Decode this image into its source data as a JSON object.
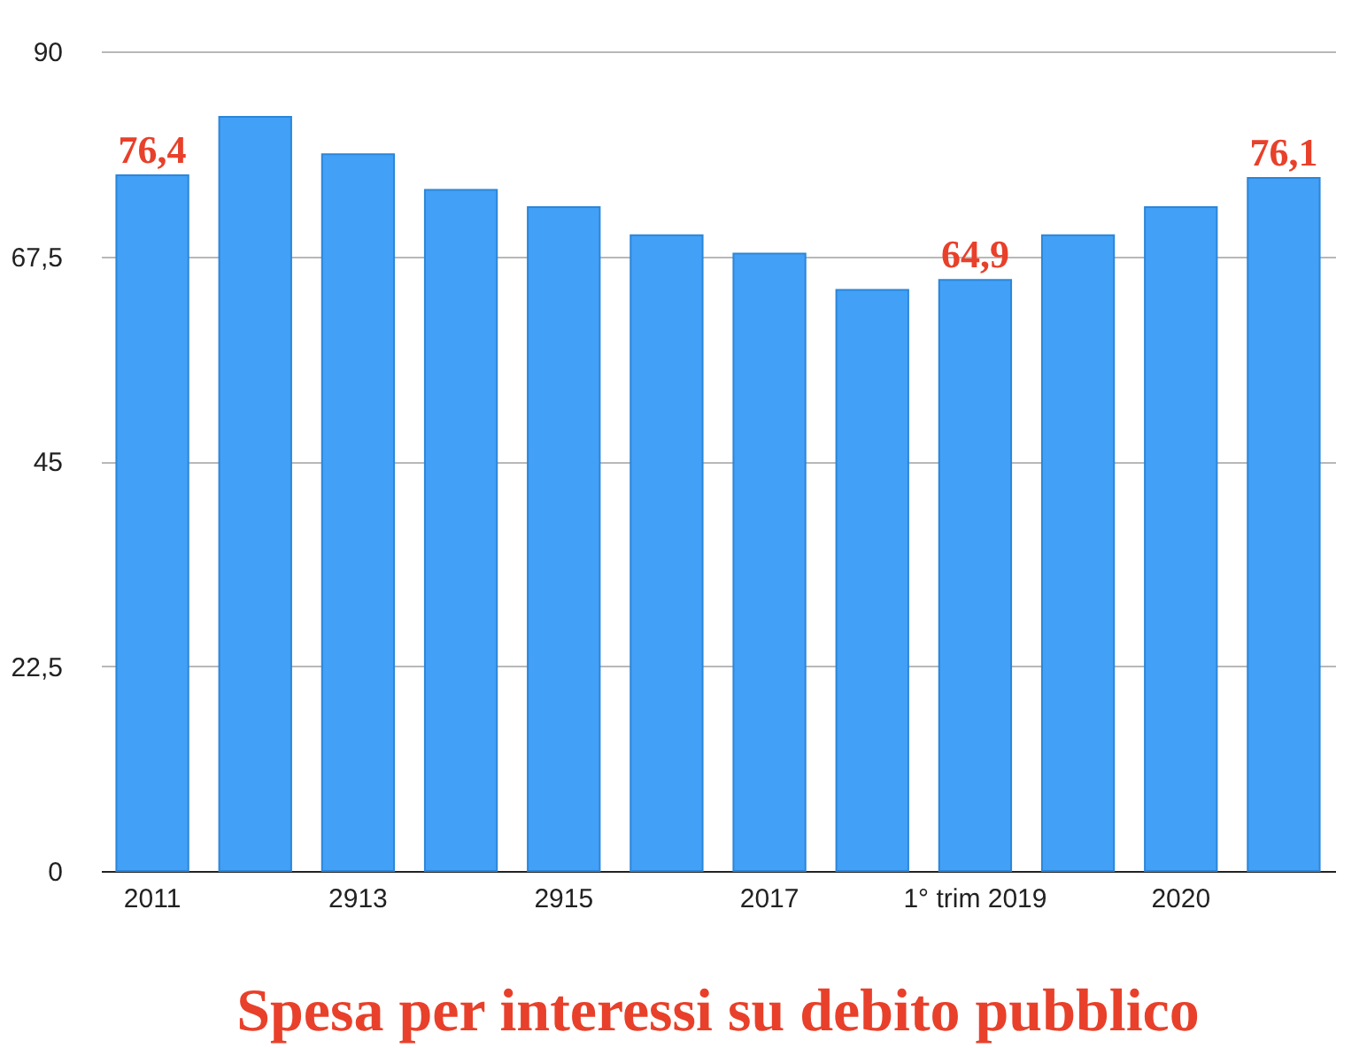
{
  "chart_data": {
    "type": "bar",
    "title": "Spesa per interessi su debito pubblico",
    "categories": [
      "2011",
      null,
      "2913",
      null,
      "2915",
      null,
      "2017",
      null,
      "1° trim 2019",
      null,
      "2020",
      null
    ],
    "values": [
      76.4,
      82.8,
      78.7,
      74.8,
      72.9,
      69.8,
      67.8,
      63.8,
      64.9,
      69.8,
      72.9,
      76.1
    ],
    "value_labels": [
      "76,4",
      null,
      null,
      null,
      null,
      null,
      null,
      null,
      "64,9",
      null,
      null,
      "76,1"
    ],
    "color": "#42a0f7",
    "ylim": [
      0,
      90
    ],
    "yticks": [
      0,
      {
        "value": 22.5,
        "label": "22,5"
      },
      45,
      {
        "value": 67.5,
        "label": "67,5"
      },
      90
    ],
    "grid": "y"
  }
}
